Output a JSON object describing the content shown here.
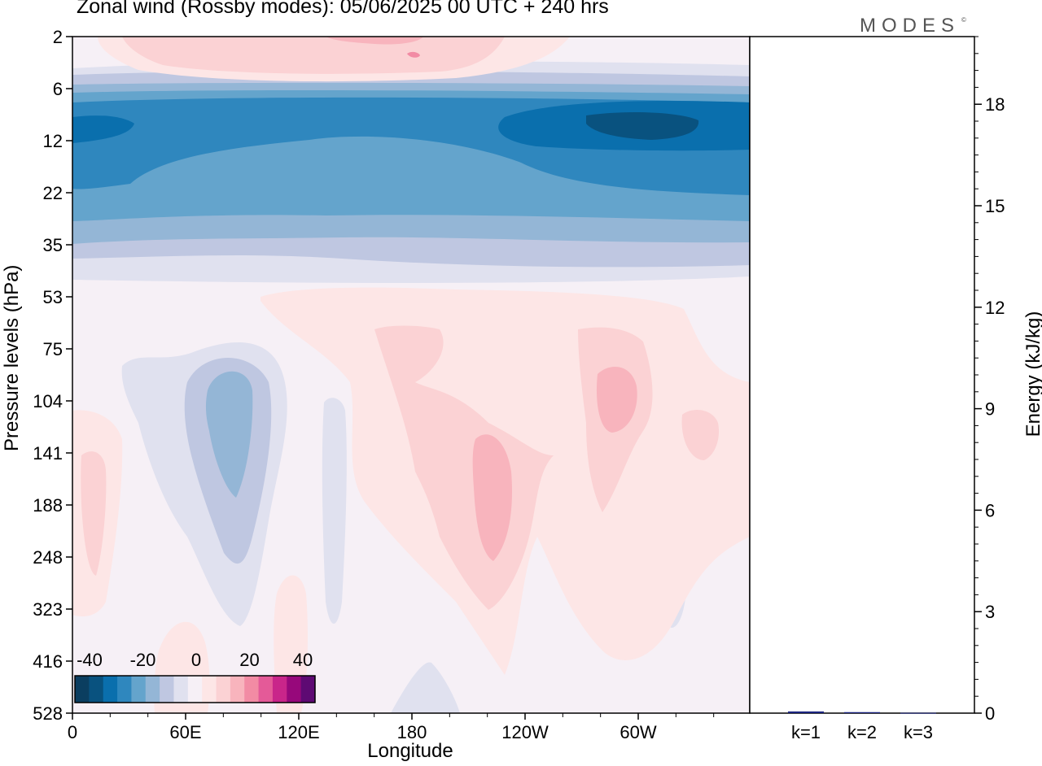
{
  "title": "Zonal wind (Rossby modes):  05/06/2025  00 UTC  + 240 hrs",
  "logo": {
    "text": "MODES",
    "mark": "©"
  },
  "chart_data": [
    {
      "type": "heatmap",
      "xlabel": "Longitude",
      "ylabel": "Pressure levels (hPa)",
      "x_ticks": [
        "0",
        "60E",
        "120E",
        "180",
        "120W",
        "60W"
      ],
      "y_ticks": [
        "2",
        "6",
        "12",
        "22",
        "35",
        "53",
        "75",
        "104",
        "141",
        "188",
        "248",
        "323",
        "416",
        "528"
      ],
      "colorbar": {
        "tick_labels": [
          "-40",
          "-20",
          "0",
          "20",
          "40"
        ],
        "levels": [
          -40,
          -35,
          -30,
          -25,
          -20,
          -15,
          -10,
          -5,
          0,
          5,
          10,
          15,
          20,
          25,
          30,
          35,
          40
        ],
        "colors": [
          "#0b3e60",
          "#09527f",
          "#0a6fad",
          "#2f87be",
          "#64a4cc",
          "#94b6d6",
          "#bfc7e1",
          "#e0e1ef",
          "#f6f0f6",
          "#fde6e6",
          "#fbd2d4",
          "#f8b4bd",
          "#f28ba4",
          "#e45a98",
          "#c9258a",
          "#97087b",
          "#5e0a73"
        ]
      }
    },
    {
      "type": "bar",
      "ylabel": "Energy (kJ/kg)",
      "categories": [
        "k=1",
        "k=2",
        "k=3"
      ],
      "values": [
        0.05,
        0.03,
        0.01
      ],
      "ylim": [
        0,
        20
      ],
      "y_ticks": [
        "0",
        "3",
        "6",
        "9",
        "12",
        "15",
        "18"
      ],
      "bar_colors": [
        "#1a237e",
        "#1a237e",
        "#1a237e"
      ]
    }
  ]
}
